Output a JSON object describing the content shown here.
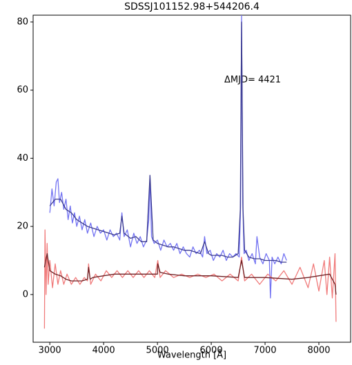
{
  "chart_data": {
    "type": "line",
    "title": "SDSSJ101152.98+544206.4",
    "x_label": "Wavelength [Å]",
    "annotation": "ΔMJD= 4421",
    "xlim": [
      2690,
      8590
    ],
    "ylim": [
      -14,
      82
    ],
    "xticks": [
      3000,
      4000,
      5000,
      6000,
      7000,
      8000
    ],
    "yticks": [
      0,
      20,
      40,
      60,
      80
    ],
    "series": [
      {
        "color": "#7272f2",
        "x": [
          3000,
          3040,
          3080,
          3120,
          3150,
          3180,
          3220,
          3260,
          3300,
          3340,
          3380,
          3420,
          3460,
          3500,
          3550,
          3600,
          3650,
          3700,
          3760,
          3820,
          3880,
          3940,
          4000,
          4060,
          4120,
          4180,
          4240,
          4300,
          4340,
          4380,
          4440,
          4500,
          4560,
          4620,
          4680,
          4740,
          4800,
          4840,
          4861,
          4890,
          4940,
          5000,
          5060,
          5120,
          5180,
          5240,
          5300,
          5360,
          5420,
          5480,
          5540,
          5600,
          5660,
          5720,
          5780,
          5840,
          5876,
          5920,
          5980,
          6040,
          6100,
          6160,
          6220,
          6280,
          6340,
          6400,
          6460,
          6520,
          6545,
          6563,
          6585,
          6610,
          6650,
          6700,
          6760,
          6820,
          6850,
          6900,
          6960,
          7020,
          7080,
          7100,
          7130,
          7180,
          7240,
          7300,
          7350,
          7400
        ],
        "values": [
          24,
          31,
          26,
          33,
          34,
          27,
          30,
          25,
          28,
          22,
          26,
          21,
          24,
          20,
          23,
          19,
          22,
          18,
          21,
          17,
          20,
          18,
          19,
          16,
          19,
          17,
          18,
          16,
          24,
          17,
          19,
          14,
          18,
          15,
          17,
          14,
          16,
          22,
          35,
          17,
          15,
          16,
          13,
          16,
          14,
          15,
          13,
          15,
          12,
          14,
          12,
          11,
          14,
          12,
          13,
          11,
          17,
          12,
          13,
          10,
          12,
          11,
          13,
          10,
          12,
          11,
          12,
          11,
          26,
          82,
          27,
          12,
          13,
          10,
          12,
          9,
          17,
          11,
          9,
          12,
          10,
          -1,
          11,
          9,
          11,
          9,
          12,
          10
        ]
      },
      {
        "color": "#3b3b8f",
        "x": [
          3000,
          3100,
          3200,
          3300,
          3400,
          3500,
          3600,
          3700,
          3800,
          3900,
          4000,
          4100,
          4200,
          4300,
          4340,
          4380,
          4500,
          4600,
          4700,
          4800,
          4861,
          4920,
          5000,
          5100,
          5200,
          5300,
          5400,
          5500,
          5600,
          5700,
          5800,
          5876,
          5950,
          6000,
          6100,
          6200,
          6300,
          6400,
          6500,
          6540,
          6563,
          6590,
          6620,
          6700,
          6800,
          6900,
          7000,
          7100,
          7200,
          7300,
          7400
        ],
        "values": [
          26,
          28,
          28,
          25,
          24,
          22,
          21,
          20,
          19.5,
          19,
          18.5,
          18,
          17.5,
          18,
          23,
          18,
          16.5,
          17,
          15.5,
          15.5,
          35,
          16,
          15,
          14.5,
          14,
          14,
          13.5,
          13,
          13,
          12.5,
          12,
          15.5,
          12,
          11.5,
          11.5,
          11.5,
          11,
          11,
          12,
          25,
          80,
          25,
          13,
          11,
          10.5,
          10.5,
          10,
          10,
          10,
          9.5,
          9.5
        ]
      },
      {
        "color": "#f07a7a",
        "x": [
          2900,
          2910,
          2930,
          2950,
          2970,
          3000,
          3050,
          3100,
          3150,
          3200,
          3260,
          3320,
          3400,
          3480,
          3560,
          3640,
          3700,
          3720,
          3760,
          3850,
          3950,
          4050,
          4150,
          4250,
          4350,
          4450,
          4550,
          4650,
          4750,
          4850,
          4950,
          5007,
          5050,
          5150,
          5300,
          5450,
          5600,
          5750,
          5900,
          6050,
          6200,
          6350,
          6500,
          6563,
          6620,
          6750,
          6900,
          7050,
          7200,
          7350,
          7500,
          7650,
          7800,
          7900,
          8000,
          8100,
          8150,
          8200,
          8250,
          8300,
          8320
        ],
        "values": [
          -10,
          19,
          0,
          15,
          3,
          10,
          2,
          9,
          3,
          7,
          3,
          6,
          3,
          5,
          3,
          5,
          4,
          9,
          3,
          6,
          4,
          7,
          5,
          7,
          5,
          7,
          5,
          7,
          5,
          7,
          5,
          10,
          5,
          7,
          5,
          6,
          5,
          6,
          5,
          6,
          4,
          6,
          4,
          11,
          4,
          6,
          3,
          6,
          4,
          7,
          3,
          8,
          2,
          9,
          1,
          10,
          0,
          11,
          -1,
          12,
          -8
        ]
      },
      {
        "color": "#6e1f22",
        "x": [
          2900,
          2950,
          3000,
          3100,
          3200,
          3300,
          3400,
          3500,
          3600,
          3700,
          3720,
          3750,
          3800,
          4000,
          4200,
          4400,
          4600,
          4800,
          5000,
          5007,
          5050,
          5200,
          5500,
          6000,
          6500,
          6563,
          6620,
          7000,
          7500,
          7800,
          8000,
          8200,
          8300,
          8320
        ],
        "values": [
          8,
          12,
          7,
          6,
          5.5,
          4.5,
          4,
          4,
          4,
          4.5,
          8,
          4.5,
          5,
          5.5,
          6,
          6,
          6,
          6,
          6,
          9,
          6.5,
          6,
          5.5,
          5.5,
          5,
          10,
          5,
          5,
          4.5,
          5,
          5.5,
          6,
          3,
          0
        ]
      }
    ]
  }
}
